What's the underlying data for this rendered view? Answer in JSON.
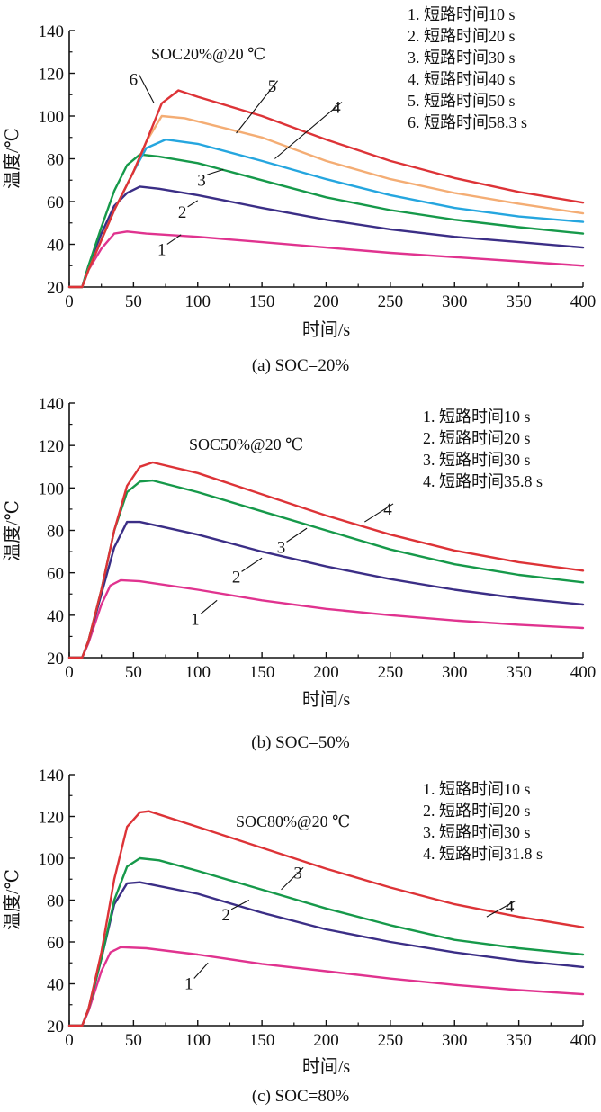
{
  "colors": {
    "1": "#e0338f",
    "2": "#3b2e86",
    "3": "#16994a",
    "4": "#25a6df",
    "5": "#f4ad74",
    "6": "#dd3337",
    "4_b": "#dd3337",
    "4_c": "#dd3337",
    "axis": "#111111"
  },
  "chart_data": [
    {
      "type": "line",
      "caption": "(a) SOC=20%",
      "annotation": "SOC20%@20 ℃",
      "xlabel": "时间/s",
      "ylabel": "温度/℃",
      "xlim": [
        0,
        400
      ],
      "ylim": [
        20,
        140
      ],
      "xticks": [
        "0",
        "50",
        "100",
        "150",
        "200",
        "250",
        "300",
        "350",
        "400"
      ],
      "yticks": [
        "20",
        "40",
        "60",
        "80",
        "100",
        "120",
        "140"
      ],
      "legend_position": "top-right",
      "legend": [
        "1. 短路时间10 s",
        "2. 短路时间20 s",
        "3. 短路时间30 s",
        "4. 短路时间40 s",
        "5. 短路时间50 s",
        "6. 短路时间58.3 s"
      ],
      "series": [
        {
          "name": "1",
          "color_key": "1",
          "points": [
            [
              0,
              20
            ],
            [
              10,
              20
            ],
            [
              15,
              28
            ],
            [
              25,
              38
            ],
            [
              35,
              45
            ],
            [
              45,
              46
            ],
            [
              60,
              45
            ],
            [
              100,
              43.5
            ],
            [
              150,
              41
            ],
            [
              200,
              38.5
            ],
            [
              250,
              36
            ],
            [
              300,
              34
            ],
            [
              350,
              32
            ],
            [
              400,
              30
            ]
          ]
        },
        {
          "name": "2",
          "color_key": "2",
          "points": [
            [
              0,
              20
            ],
            [
              10,
              20
            ],
            [
              15,
              30
            ],
            [
              25,
              45
            ],
            [
              35,
              58
            ],
            [
              45,
              64
            ],
            [
              55,
              67
            ],
            [
              70,
              66
            ],
            [
              100,
              63
            ],
            [
              150,
              57
            ],
            [
              200,
              51.5
            ],
            [
              250,
              47
            ],
            [
              300,
              43.5
            ],
            [
              350,
              41
            ],
            [
              400,
              38.5
            ]
          ]
        },
        {
          "name": "3",
          "color_key": "3",
          "points": [
            [
              0,
              20
            ],
            [
              10,
              20
            ],
            [
              15,
              30
            ],
            [
              25,
              48
            ],
            [
              35,
              65
            ],
            [
              45,
              77
            ],
            [
              55,
              82
            ],
            [
              70,
              81
            ],
            [
              100,
              78
            ],
            [
              150,
              70
            ],
            [
              200,
              62
            ],
            [
              250,
              56
            ],
            [
              300,
              51.5
            ],
            [
              350,
              48
            ],
            [
              400,
              45
            ]
          ]
        },
        {
          "name": "4",
          "color_key": "4",
          "points": [
            [
              0,
              20
            ],
            [
              10,
              20
            ],
            [
              15,
              28
            ],
            [
              25,
              42
            ],
            [
              35,
              56
            ],
            [
              50,
              74
            ],
            [
              60,
              85
            ],
            [
              75,
              89
            ],
            [
              100,
              87
            ],
            [
              150,
              79
            ],
            [
              200,
              70.5
            ],
            [
              250,
              63
            ],
            [
              300,
              57
            ],
            [
              350,
              53
            ],
            [
              400,
              50.5
            ]
          ]
        },
        {
          "name": "5",
          "color_key": "5",
          "points": [
            [
              0,
              20
            ],
            [
              10,
              20
            ],
            [
              15,
              28
            ],
            [
              25,
              42
            ],
            [
              35,
              56
            ],
            [
              50,
              74
            ],
            [
              60,
              88
            ],
            [
              72,
              100
            ],
            [
              90,
              99
            ],
            [
              150,
              90
            ],
            [
              200,
              79
            ],
            [
              250,
              70.5
            ],
            [
              300,
              64
            ],
            [
              350,
              59
            ],
            [
              400,
              54.5
            ]
          ]
        },
        {
          "name": "6",
          "color_key": "6",
          "points": [
            [
              0,
              20
            ],
            [
              10,
              20
            ],
            [
              15,
              28
            ],
            [
              25,
              42
            ],
            [
              35,
              56
            ],
            [
              50,
              74
            ],
            [
              60,
              88
            ],
            [
              72,
              106
            ],
            [
              85,
              112
            ],
            [
              100,
              109
            ],
            [
              150,
              100
            ],
            [
              200,
              89
            ],
            [
              250,
              79
            ],
            [
              300,
              71
            ],
            [
              350,
              64.5
            ],
            [
              400,
              59.5
            ]
          ]
        }
      ],
      "curve_labels": [
        {
          "text": "1",
          "lx": 72,
          "ly": 37.5,
          "ax": 87,
          "ay": 44.5
        },
        {
          "text": "2",
          "lx": 88,
          "ly": 55,
          "ax": 100,
          "ay": 60.5
        },
        {
          "text": "3",
          "lx": 103,
          "ly": 70,
          "ax": 120,
          "ay": 75
        },
        {
          "text": "4",
          "lx": 208,
          "ly": 104,
          "ax": 160,
          "ay": 80
        },
        {
          "text": "5",
          "lx": 158,
          "ly": 114,
          "ax": 130,
          "ay": 92
        },
        {
          "text": "6",
          "lx": 50,
          "ly": 117,
          "ax": 66,
          "ay": 106
        }
      ]
    },
    {
      "type": "line",
      "caption": "(b) SOC=50%",
      "annotation": "SOC50%@20 ℃",
      "xlabel": "时间/s",
      "ylabel": "温度/℃",
      "xlim": [
        0,
        400
      ],
      "ylim": [
        20,
        140
      ],
      "xticks": [
        "0",
        "50",
        "100",
        "150",
        "200",
        "250",
        "300",
        "350",
        "400"
      ],
      "yticks": [
        "20",
        "40",
        "60",
        "80",
        "100",
        "120",
        "140"
      ],
      "legend_position": "top-right",
      "legend": [
        "1. 短路时间10 s",
        "2. 短路时间20 s",
        "3. 短路时间30 s",
        "4. 短路时间35.8 s"
      ],
      "series": [
        {
          "name": "1",
          "color_key": "1",
          "points": [
            [
              0,
              20
            ],
            [
              10,
              20
            ],
            [
              15,
              27
            ],
            [
              25,
              45
            ],
            [
              32,
              54
            ],
            [
              40,
              56.5
            ],
            [
              55,
              56
            ],
            [
              100,
              52
            ],
            [
              150,
              47
            ],
            [
              200,
              43
            ],
            [
              250,
              40
            ],
            [
              300,
              37.5
            ],
            [
              350,
              35.5
            ],
            [
              400,
              34
            ]
          ]
        },
        {
          "name": "2",
          "color_key": "2",
          "points": [
            [
              0,
              20
            ],
            [
              10,
              20
            ],
            [
              15,
              28
            ],
            [
              25,
              50
            ],
            [
              35,
              72
            ],
            [
              45,
              84
            ],
            [
              55,
              84
            ],
            [
              100,
              78
            ],
            [
              150,
              70
            ],
            [
              200,
              63
            ],
            [
              250,
              57
            ],
            [
              300,
              52
            ],
            [
              350,
              48
            ],
            [
              400,
              45
            ]
          ]
        },
        {
          "name": "3",
          "color_key": "3",
          "points": [
            [
              0,
              20
            ],
            [
              10,
              20
            ],
            [
              15,
              28
            ],
            [
              25,
              52
            ],
            [
              35,
              80
            ],
            [
              45,
              98
            ],
            [
              55,
              103
            ],
            [
              65,
              103.5
            ],
            [
              100,
              98
            ],
            [
              150,
              89
            ],
            [
              200,
              80
            ],
            [
              250,
              71
            ],
            [
              300,
              64
            ],
            [
              350,
              59
            ],
            [
              400,
              55.5
            ]
          ]
        },
        {
          "name": "4",
          "color_key": "4_b",
          "points": [
            [
              0,
              20
            ],
            [
              10,
              20
            ],
            [
              15,
              28
            ],
            [
              25,
              52
            ],
            [
              35,
              80
            ],
            [
              45,
              101
            ],
            [
              55,
              110
            ],
            [
              65,
              112
            ],
            [
              100,
              107
            ],
            [
              150,
              97
            ],
            [
              200,
              87
            ],
            [
              250,
              78
            ],
            [
              300,
              70.5
            ],
            [
              350,
              65
            ],
            [
              400,
              61
            ]
          ]
        }
      ],
      "curve_labels": [
        {
          "text": "1",
          "lx": 98,
          "ly": 38,
          "ax": 115,
          "ay": 47
        },
        {
          "text": "2",
          "lx": 130,
          "ly": 58,
          "ax": 150,
          "ay": 67
        },
        {
          "text": "3",
          "lx": 165,
          "ly": 72,
          "ax": 185,
          "ay": 81
        },
        {
          "text": "4",
          "lx": 248,
          "ly": 90,
          "ax": 230,
          "ay": 84
        }
      ]
    },
    {
      "type": "line",
      "caption": "(c) SOC=80%",
      "annotation": "SOC80%@20 ℃",
      "xlabel": "时间/s",
      "ylabel": "温度/℃",
      "xlim": [
        0,
        400
      ],
      "ylim": [
        20,
        140
      ],
      "xticks": [
        "0",
        "50",
        "100",
        "150",
        "200",
        "250",
        "300",
        "350",
        "400"
      ],
      "yticks": [
        "20",
        "40",
        "60",
        "80",
        "100",
        "120",
        "140"
      ],
      "legend_position": "top-right",
      "legend": [
        "1. 短路时间10 s",
        "2. 短路时间20 s",
        "3. 短路时间30 s",
        "4. 短路时间31.8 s"
      ],
      "series": [
        {
          "name": "1",
          "color_key": "1",
          "points": [
            [
              0,
              20
            ],
            [
              10,
              20
            ],
            [
              15,
              27
            ],
            [
              25,
              46
            ],
            [
              32,
              55
            ],
            [
              40,
              57.5
            ],
            [
              60,
              57
            ],
            [
              100,
              54
            ],
            [
              150,
              49.5
            ],
            [
              200,
              46
            ],
            [
              250,
              42.5
            ],
            [
              300,
              39.5
            ],
            [
              350,
              37
            ],
            [
              400,
              35
            ]
          ]
        },
        {
          "name": "2",
          "color_key": "2",
          "points": [
            [
              0,
              20
            ],
            [
              10,
              20
            ],
            [
              15,
              28
            ],
            [
              25,
              52
            ],
            [
              35,
              78
            ],
            [
              45,
              88
            ],
            [
              55,
              88.5
            ],
            [
              100,
              83
            ],
            [
              150,
              74
            ],
            [
              200,
              66
            ],
            [
              250,
              60
            ],
            [
              300,
              55
            ],
            [
              350,
              51
            ],
            [
              400,
              48
            ]
          ]
        },
        {
          "name": "3",
          "color_key": "3",
          "points": [
            [
              0,
              20
            ],
            [
              10,
              20
            ],
            [
              15,
              28
            ],
            [
              25,
              52
            ],
            [
              35,
              80
            ],
            [
              45,
              96
            ],
            [
              55,
              100
            ],
            [
              70,
              99
            ],
            [
              100,
              94
            ],
            [
              150,
              85
            ],
            [
              200,
              76
            ],
            [
              250,
              68
            ],
            [
              300,
              61
            ],
            [
              350,
              57
            ],
            [
              400,
              54
            ]
          ]
        },
        {
          "name": "4",
          "color_key": "4_c",
          "points": [
            [
              0,
              20
            ],
            [
              10,
              20
            ],
            [
              15,
              28
            ],
            [
              25,
              55
            ],
            [
              35,
              90
            ],
            [
              45,
              115
            ],
            [
              55,
              122
            ],
            [
              62,
              122.5
            ],
            [
              100,
              115
            ],
            [
              150,
              105
            ],
            [
              200,
              95
            ],
            [
              250,
              86
            ],
            [
              300,
              78
            ],
            [
              350,
              72
            ],
            [
              400,
              67
            ]
          ]
        }
      ],
      "curve_labels": [
        {
          "text": "1",
          "lx": 93,
          "ly": 40,
          "ax": 108,
          "ay": 50
        },
        {
          "text": "2",
          "lx": 122,
          "ly": 73,
          "ax": 140,
          "ay": 80
        },
        {
          "text": "3",
          "lx": 178,
          "ly": 93,
          "ax": 165,
          "ay": 85
        },
        {
          "text": "4",
          "lx": 343,
          "ly": 77,
          "ax": 325,
          "ay": 72
        }
      ]
    }
  ]
}
